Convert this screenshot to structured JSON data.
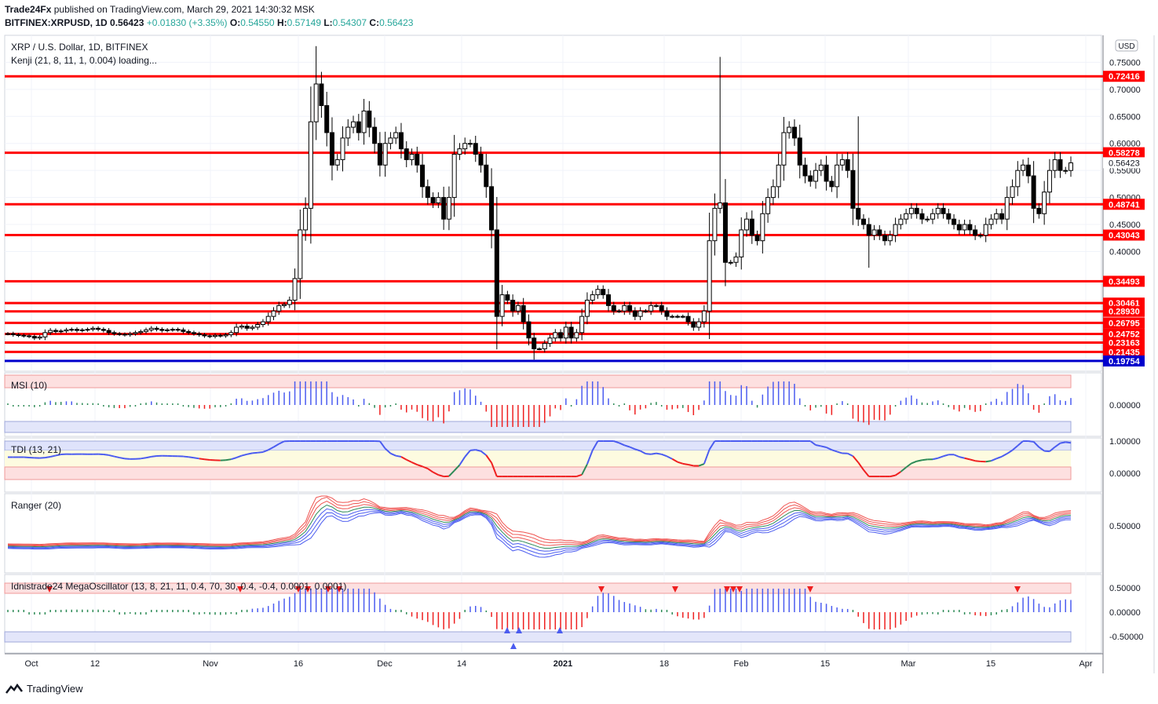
{
  "header": {
    "publisher": "Trade24Fx",
    "published_text": "published on TradingView.com, March 29, 2021 14:30:32 MSK",
    "symbol_line": "BITFINEX:XRPUSD, 1D",
    "last": "0.56423",
    "change": "+0.01830 (+3.35%)",
    "o_label": "O:",
    "o": "0.54550",
    "h_label": "H:",
    "h": "0.57149",
    "l_label": "L:",
    "l": "0.54307",
    "c_label": "C:",
    "c": "0.56423"
  },
  "main_legend": {
    "title": "XRP / U.S. Dollar, 1D, BITFINEX",
    "indicator": "Kenji (21, 8, 11, 1, 0.004) loading..."
  },
  "currency_badge": "USD",
  "panes": {
    "msi": "MSI (10)",
    "tdi": "TDI (13, 21)",
    "ranger": "Ranger (20)",
    "mega": "Idnistrade24 MegaOscillator (13, 8, 21, 11, 0.4, 70, 30, 0.4, -0.4, 0.0001, 0.0001)"
  },
  "footer": {
    "brand": "TradingView"
  },
  "colors": {
    "up": "#26a69a",
    "down": "#ef5350",
    "level": "#ff0000",
    "support": "#0000cc",
    "candle": "#000000",
    "blue_bar": "#4b5cf0",
    "green_bar": "#2e8b57",
    "red_bar": "#ef2020"
  },
  "chart_data": [
    {
      "type": "candlestick",
      "title": "XRP / U.S. Dollar, 1D, BITFINEX",
      "ylim": [
        0.18,
        0.8
      ],
      "y_ticks": [
        "0.75000",
        "0.70000",
        "0.65000",
        "0.60000",
        "0.56423",
        "0.55000",
        "0.50000",
        "0.45000",
        "0.40000"
      ],
      "x_ticks": [
        "Oct",
        "12",
        "Nov",
        "16",
        "Dec",
        "14",
        "2021",
        "18",
        "Feb",
        "15",
        "Mar",
        "15",
        "Apr"
      ],
      "horizontal_levels": [
        {
          "value": 0.72416,
          "label": "0.72416",
          "color": "red"
        },
        {
          "value": 0.58278,
          "label": "0.58278",
          "color": "red"
        },
        {
          "value": 0.48741,
          "label": "0.48741",
          "color": "red"
        },
        {
          "value": 0.43043,
          "label": "0.43043",
          "color": "red"
        },
        {
          "value": 0.34493,
          "label": "0.34493",
          "color": "red"
        },
        {
          "value": 0.30461,
          "label": "0.30461",
          "color": "red"
        },
        {
          "value": 0.2893,
          "label": "0.28930",
          "color": "red"
        },
        {
          "value": 0.26795,
          "label": "0.26795",
          "color": "red"
        },
        {
          "value": 0.24752,
          "label": "0.24752",
          "color": "red"
        },
        {
          "value": 0.23163,
          "label": "0.23163",
          "color": "red"
        },
        {
          "value": 0.21435,
          "label": "0.21435",
          "color": "red"
        },
        {
          "value": 0.19754,
          "label": "0.19754",
          "color": "blue"
        }
      ],
      "last_price": 0.56423,
      "closes": [
        0.248,
        0.246,
        0.245,
        0.244,
        0.243,
        0.24,
        0.242,
        0.25,
        0.254,
        0.252,
        0.253,
        0.255,
        0.256,
        0.254,
        0.255,
        0.256,
        0.258,
        0.256,
        0.254,
        0.25,
        0.248,
        0.247,
        0.246,
        0.248,
        0.25,
        0.252,
        0.255,
        0.258,
        0.256,
        0.254,
        0.255,
        0.256,
        0.255,
        0.252,
        0.25,
        0.248,
        0.246,
        0.244,
        0.243,
        0.245,
        0.244,
        0.246,
        0.25,
        0.26,
        0.262,
        0.258,
        0.26,
        0.265,
        0.27,
        0.28,
        0.29,
        0.3,
        0.302,
        0.31,
        0.35,
        0.44,
        0.48,
        0.64,
        0.71,
        0.67,
        0.62,
        0.56,
        0.57,
        0.61,
        0.63,
        0.64,
        0.62,
        0.66,
        0.63,
        0.6,
        0.56,
        0.6,
        0.61,
        0.62,
        0.59,
        0.57,
        0.58,
        0.56,
        0.52,
        0.5,
        0.49,
        0.5,
        0.46,
        0.5,
        0.58,
        0.59,
        0.6,
        0.6,
        0.58,
        0.56,
        0.52,
        0.44,
        0.28,
        0.32,
        0.31,
        0.29,
        0.3,
        0.27,
        0.24,
        0.22,
        0.22,
        0.23,
        0.24,
        0.25,
        0.24,
        0.26,
        0.24,
        0.25,
        0.28,
        0.31,
        0.32,
        0.33,
        0.32,
        0.3,
        0.29,
        0.29,
        0.3,
        0.29,
        0.28,
        0.29,
        0.29,
        0.3,
        0.3,
        0.29,
        0.28,
        0.28,
        0.28,
        0.28,
        0.27,
        0.26,
        0.27,
        0.29,
        0.42,
        0.48,
        0.49,
        0.38,
        0.38,
        0.39,
        0.44,
        0.46,
        0.43,
        0.42,
        0.47,
        0.5,
        0.52,
        0.56,
        0.62,
        0.63,
        0.61,
        0.56,
        0.54,
        0.53,
        0.55,
        0.56,
        0.53,
        0.52,
        0.56,
        0.57,
        0.55,
        0.48,
        0.46,
        0.45,
        0.43,
        0.44,
        0.43,
        0.42,
        0.43,
        0.45,
        0.46,
        0.47,
        0.48,
        0.47,
        0.46,
        0.46,
        0.47,
        0.48,
        0.47,
        0.46,
        0.45,
        0.44,
        0.45,
        0.44,
        0.43,
        0.43,
        0.45,
        0.46,
        0.47,
        0.46,
        0.5,
        0.52,
        0.55,
        0.56,
        0.54,
        0.48,
        0.47,
        0.51,
        0.55,
        0.57,
        0.55,
        0.55,
        0.564
      ]
    },
    {
      "type": "bar",
      "title": "MSI (10)",
      "y_ticks": [
        "0.00000"
      ],
      "bands": {
        "upper_zone": "red",
        "lower_zone": "blue"
      }
    },
    {
      "type": "line",
      "title": "TDI (13, 21)",
      "y_ticks": [
        "1.00000",
        "0.00000"
      ]
    },
    {
      "type": "line",
      "title": "Ranger (20)",
      "y_ticks": [
        "0.50000"
      ]
    },
    {
      "type": "bar",
      "title": "Idnistrade24 MegaOscillator (13, 8, 21, 11, 0.4, 70, 30, 0.4, -0.4, 0.0001, 0.0001)",
      "y_ticks": [
        "0.50000",
        "0.00000",
        "-0.50000"
      ]
    }
  ]
}
